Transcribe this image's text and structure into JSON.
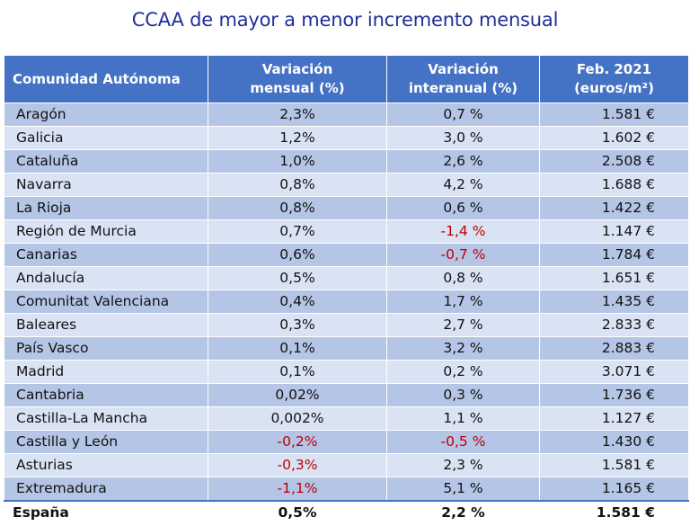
{
  "title": "CCAA de mayor a menor incremento mensual",
  "headers": {
    "region": "Comunidad Autónoma",
    "monthly_line1": "Variación",
    "monthly_line2": "mensual (%)",
    "yearly_line1": "Variación",
    "yearly_line2": "interanual (%)",
    "price_line1": "Feb. 2021",
    "price_line2": "(euros/m²)"
  },
  "rows": [
    {
      "name": "Aragón",
      "monthly": "2,3%",
      "yearly": "0,7 %",
      "price": "1.581 €"
    },
    {
      "name": "Galicia",
      "monthly": "1,2%",
      "yearly": "3,0 %",
      "price": "1.602 €"
    },
    {
      "name": "Cataluña",
      "monthly": "1,0%",
      "yearly": "2,6 %",
      "price": "2.508 €"
    },
    {
      "name": "Navarra",
      "monthly": "0,8%",
      "yearly": "4,2 %",
      "price": "1.688 €"
    },
    {
      "name": "La Rioja",
      "monthly": "0,8%",
      "yearly": "0,6 %",
      "price": "1.422 €"
    },
    {
      "name": "Región de Murcia",
      "monthly": "0,7%",
      "yearly": "-1,4 %",
      "price": "1.147 €"
    },
    {
      "name": "Canarias",
      "monthly": "0,6%",
      "yearly": "-0,7 %",
      "price": "1.784 €"
    },
    {
      "name": "Andalucía",
      "monthly": "0,5%",
      "yearly": "0,8 %",
      "price": "1.651 €"
    },
    {
      "name": "Comunitat Valenciana",
      "monthly": "0,4%",
      "yearly": "1,7 %",
      "price": "1.435 €"
    },
    {
      "name": "Baleares",
      "monthly": "0,3%",
      "yearly": "2,7 %",
      "price": "2.833 €"
    },
    {
      "name": "País Vasco",
      "monthly": "0,1%",
      "yearly": "3,2 %",
      "price": "2.883 €"
    },
    {
      "name": "Madrid",
      "monthly": "0,1%",
      "yearly": "0,2 %",
      "price": "3.071 €"
    },
    {
      "name": "Cantabria",
      "monthly": "0,02%",
      "yearly": "0,3 %",
      "price": "1.736 €"
    },
    {
      "name": "Castilla-La Mancha",
      "monthly": "0,002%",
      "yearly": "1,1 %",
      "price": "1.127 €"
    },
    {
      "name": "Castilla y León",
      "monthly": "-0,2%",
      "yearly": "-0,5 %",
      "price": "1.430 €"
    },
    {
      "name": "Asturias",
      "monthly": "-0,3%",
      "yearly": "2,3 %",
      "price": "1.581 €"
    },
    {
      "name": "Extremadura",
      "monthly": "-1,1%",
      "yearly": "5,1 %",
      "price": "1.165 €"
    }
  ],
  "total": {
    "name": "España",
    "monthly": "0,5%",
    "yearly": "2,2 %",
    "price": "1.581 €"
  },
  "colors": {
    "header_bg": "#4472c4",
    "row_dark": "#b4c5e6",
    "row_light": "#dae3f3",
    "negative": "#c00000",
    "title": "#1f2f99"
  }
}
